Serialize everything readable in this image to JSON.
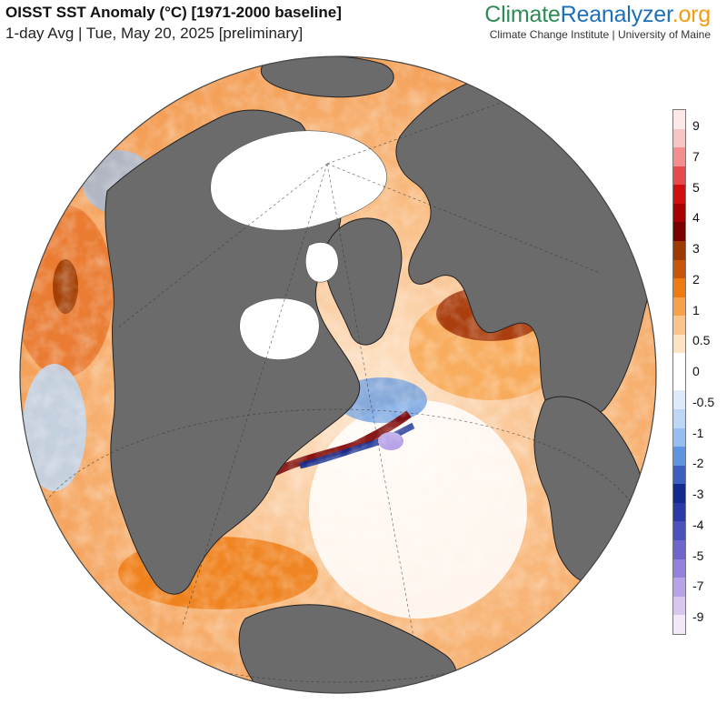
{
  "header": {
    "title": "OISST SST Anomaly (°C) [1971-2000 baseline]",
    "subtitle": "1-day Avg | Tue, May 20, 2025 [preliminary]"
  },
  "brand": {
    "part1": "Climate",
    "part2": "Reanalyzer",
    "part3": ".org",
    "affiliation": "Climate Change Institute | University of Maine",
    "colors": {
      "part1": "#2e8b57",
      "part2": "#1d6fb8",
      "part3": "#f39c12"
    }
  },
  "map": {
    "projection": "orthographic",
    "center": "North Atlantic",
    "land_color": "#6b6b6b",
    "sea_ice_color": "#ffffff",
    "features": [
      "sea-ice",
      "gulf-stream-anomaly",
      "north-sea-warm-anomaly"
    ]
  },
  "legend": {
    "labels": [
      "9",
      "7",
      "5",
      "4",
      "3",
      "2",
      "1",
      "0.5",
      "0",
      "-0.5",
      "-1",
      "-2",
      "-3",
      "-4",
      "-5",
      "-7",
      "-9"
    ],
    "colors": [
      "#fde8e8",
      "#f9c4c4",
      "#f48d8d",
      "#e84a4a",
      "#d01010",
      "#a80000",
      "#7a0000",
      "#9c3a00",
      "#c8560a",
      "#ef7a10",
      "#f7a24a",
      "#fbc48a",
      "#fde2c4",
      "#ffffff",
      "#ffffff",
      "#ddeafa",
      "#bcd7f5",
      "#94bff0",
      "#5f95e0",
      "#3a60c0",
      "#132b8f",
      "#2a3aa8",
      "#4b52bc",
      "#6e66cc",
      "#9482dc",
      "#b8a3e6",
      "#d8c6f0",
      "#f3e8f8"
    ]
  }
}
